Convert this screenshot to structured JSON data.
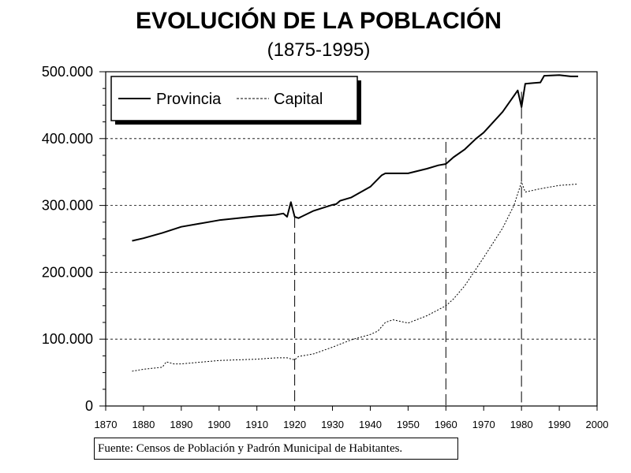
{
  "chart_data": {
    "type": "line",
    "title": "EVOLUCIÓN DE LA POBLACIÓN",
    "subtitle": "(1875-1995)",
    "source": "Fuente: Censos de Población y Padrón Municipal de Habitantes.",
    "xlim": [
      1870,
      2000
    ],
    "ylim": [
      0,
      500000
    ],
    "x_ticks": [
      "1870",
      "1880",
      "1890",
      "1900",
      "1910",
      "1920",
      "1930",
      "1940",
      "1950",
      "1960",
      "1970",
      "1980",
      "1990",
      "2000"
    ],
    "y_ticks": [
      "0",
      "100.000",
      "200.000",
      "300.000",
      "400.000",
      "500.000"
    ],
    "grid": "horizontal dashed",
    "legend_placement": "top-left",
    "vertical_markers": [
      1920,
      1960,
      1980
    ],
    "series": [
      {
        "name": "Provincia",
        "style": "solid",
        "color": "#000000",
        "points": [
          [
            1877,
            247000
          ],
          [
            1880,
            251000
          ],
          [
            1885,
            259000
          ],
          [
            1890,
            268000
          ],
          [
            1895,
            273000
          ],
          [
            1900,
            278000
          ],
          [
            1905,
            281000
          ],
          [
            1910,
            284000
          ],
          [
            1915,
            286000
          ],
          [
            1917,
            288000
          ],
          [
            1918,
            283000
          ],
          [
            1919,
            305000
          ],
          [
            1920,
            283000
          ],
          [
            1921,
            281000
          ],
          [
            1925,
            292000
          ],
          [
            1930,
            301000
          ],
          [
            1931,
            302000
          ],
          [
            1932,
            307000
          ],
          [
            1935,
            312000
          ],
          [
            1940,
            328000
          ],
          [
            1943,
            345000
          ],
          [
            1944,
            348000
          ],
          [
            1950,
            348000
          ],
          [
            1955,
            355000
          ],
          [
            1958,
            360000
          ],
          [
            1960,
            362000
          ],
          [
            1962,
            372000
          ],
          [
            1965,
            384000
          ],
          [
            1968,
            400000
          ],
          [
            1970,
            409000
          ],
          [
            1975,
            440000
          ],
          [
            1979,
            472000
          ],
          [
            1980,
            447000
          ],
          [
            1981,
            482000
          ],
          [
            1983,
            483000
          ],
          [
            1985,
            484000
          ],
          [
            1986,
            494000
          ],
          [
            1990,
            495000
          ],
          [
            1993,
            493000
          ],
          [
            1995,
            493000
          ]
        ]
      },
      {
        "name": "Capital",
        "style": "dashed",
        "color": "#000000",
        "points": [
          [
            1877,
            52000
          ],
          [
            1880,
            55000
          ],
          [
            1885,
            58000
          ],
          [
            1886,
            66000
          ],
          [
            1888,
            63000
          ],
          [
            1890,
            63000
          ],
          [
            1900,
            68000
          ],
          [
            1910,
            70000
          ],
          [
            1915,
            72000
          ],
          [
            1918,
            72000
          ],
          [
            1920,
            69000
          ],
          [
            1921,
            74000
          ],
          [
            1925,
            78000
          ],
          [
            1930,
            88000
          ],
          [
            1935,
            99000
          ],
          [
            1940,
            107000
          ],
          [
            1942,
            112000
          ],
          [
            1944,
            125000
          ],
          [
            1946,
            129000
          ],
          [
            1950,
            124000
          ],
          [
            1955,
            135000
          ],
          [
            1960,
            150000
          ],
          [
            1962,
            160000
          ],
          [
            1965,
            180000
          ],
          [
            1970,
            222000
          ],
          [
            1975,
            266000
          ],
          [
            1978,
            300000
          ],
          [
            1980,
            335000
          ],
          [
            1981,
            320000
          ],
          [
            1985,
            325000
          ],
          [
            1990,
            330000
          ],
          [
            1995,
            332000
          ]
        ]
      }
    ]
  }
}
